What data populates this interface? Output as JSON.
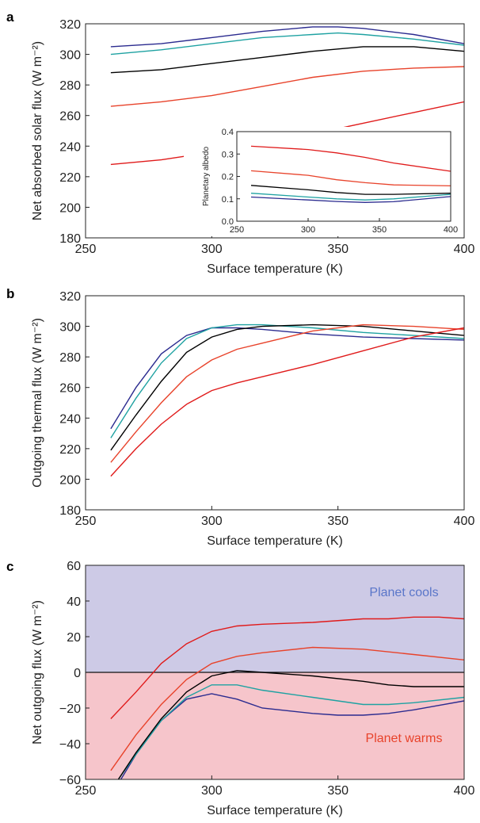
{
  "figure": {
    "panels": [
      "a",
      "b",
      "c"
    ]
  },
  "colors": {
    "series": [
      "#2b2b8f",
      "#1fa2a2",
      "#000000",
      "#e8432b",
      "#e01b1b"
    ],
    "cools_fill": "#cdcae6",
    "warms_fill": "#f6c5cb",
    "cools_text": "#5a76c9",
    "warms_text": "#e8432b"
  },
  "chart_data": [
    {
      "id": "a",
      "type": "line",
      "xlabel": "Surface temperature (K)",
      "ylabel": "Net absorbed solar flux (W m⁻²)",
      "xlim": [
        250,
        400
      ],
      "ylim": [
        180,
        320
      ],
      "xticks": [
        250,
        300,
        350,
        400
      ],
      "yticks": [
        180,
        200,
        220,
        240,
        260,
        280,
        300,
        320
      ],
      "grid": false,
      "series": [
        {
          "x": [
            260,
            280,
            300,
            320,
            340,
            350,
            360,
            380,
            400
          ],
          "values": [
            305,
            307,
            311,
            315,
            318,
            318,
            317,
            313,
            307
          ]
        },
        {
          "x": [
            260,
            280,
            300,
            320,
            340,
            350,
            360,
            380,
            400
          ],
          "values": [
            300,
            303,
            307,
            311,
            313,
            314,
            313,
            310,
            306
          ]
        },
        {
          "x": [
            260,
            280,
            300,
            320,
            340,
            360,
            380,
            400
          ],
          "values": [
            288,
            290,
            294,
            298,
            302,
            305,
            305,
            302
          ]
        },
        {
          "x": [
            260,
            280,
            300,
            320,
            340,
            360,
            380,
            400
          ],
          "values": [
            266,
            269,
            273,
            279,
            285,
            289,
            291,
            292
          ]
        },
        {
          "x": [
            260,
            280,
            300,
            320,
            340,
            360,
            380,
            400
          ],
          "values": [
            228,
            231,
            236,
            242,
            248,
            255,
            262,
            269
          ]
        }
      ],
      "inset": {
        "ylabel": "Planetary albedo",
        "xlim": [
          250,
          400
        ],
        "ylim": [
          0.0,
          0.4
        ],
        "xticks": [
          250,
          300,
          350,
          400
        ],
        "yticks": [
          0.0,
          0.1,
          0.2,
          0.3,
          0.4
        ],
        "tick_labels_y": [
          "0.0",
          "0.1",
          "0.2",
          "0.3",
          "0.4"
        ],
        "series": [
          {
            "x": [
              260,
              300,
              320,
              340,
              360,
              400
            ],
            "values": [
              0.108,
              0.095,
              0.088,
              0.084,
              0.087,
              0.11
            ]
          },
          {
            "x": [
              260,
              300,
              320,
              340,
              360,
              400
            ],
            "values": [
              0.125,
              0.108,
              0.1,
              0.095,
              0.1,
              0.12
            ]
          },
          {
            "x": [
              260,
              300,
              320,
              340,
              360,
              400
            ],
            "values": [
              0.16,
              0.14,
              0.128,
              0.12,
              0.12,
              0.125
            ]
          },
          {
            "x": [
              260,
              300,
              320,
              340,
              360,
              400
            ],
            "values": [
              0.225,
              0.205,
              0.185,
              0.172,
              0.162,
              0.158
            ]
          },
          {
            "x": [
              260,
              300,
              320,
              340,
              360,
              400
            ],
            "values": [
              0.335,
              0.32,
              0.305,
              0.285,
              0.26,
              0.223
            ]
          }
        ]
      }
    },
    {
      "id": "b",
      "type": "line",
      "xlabel": "Surface temperature (K)",
      "ylabel": "Outgoing thermal flux (W m⁻²)",
      "xlim": [
        250,
        400
      ],
      "ylim": [
        180,
        320
      ],
      "xticks": [
        250,
        300,
        350,
        400
      ],
      "yticks": [
        180,
        200,
        220,
        240,
        260,
        280,
        300,
        320
      ],
      "grid": false,
      "series": [
        {
          "x": [
            260,
            270,
            280,
            290,
            300,
            310,
            320,
            340,
            360,
            380,
            400
          ],
          "values": [
            233,
            260,
            282,
            294,
            299,
            299,
            298,
            295,
            293,
            292,
            291
          ]
        },
        {
          "x": [
            260,
            270,
            280,
            290,
            300,
            310,
            320,
            340,
            360,
            380,
            400
          ],
          "values": [
            227,
            253,
            276,
            292,
            299,
            301,
            301,
            299,
            296,
            294,
            292
          ]
        },
        {
          "x": [
            260,
            270,
            280,
            290,
            300,
            310,
            320,
            340,
            360,
            380,
            400
          ],
          "values": [
            219,
            242,
            264,
            283,
            293,
            298,
            300,
            301,
            300,
            297,
            294
          ]
        },
        {
          "x": [
            260,
            270,
            280,
            290,
            300,
            310,
            320,
            340,
            360,
            380,
            400
          ],
          "values": [
            211,
            231,
            250,
            267,
            278,
            285,
            289,
            297,
            301,
            300,
            298
          ]
        },
        {
          "x": [
            260,
            270,
            280,
            290,
            300,
            310,
            320,
            340,
            360,
            380,
            400
          ],
          "values": [
            202,
            220,
            236,
            249,
            258,
            263,
            267,
            275,
            284,
            293,
            299
          ]
        }
      ]
    },
    {
      "id": "c",
      "type": "line",
      "xlabel": "Surface temperature (K)",
      "ylabel": "Net outgoing flux (W m⁻²)",
      "xlim": [
        250,
        400
      ],
      "ylim": [
        -60,
        60
      ],
      "xticks": [
        250,
        300,
        350,
        400
      ],
      "yticks": [
        -60,
        -40,
        -20,
        0,
        20,
        40,
        60
      ],
      "tick_labels_y": [
        "−60",
        "−40",
        "−20",
        "0",
        "20",
        "40",
        "60"
      ],
      "grid": false,
      "annotations": {
        "upper": "Planet cools",
        "lower": "Planet warms"
      },
      "series": [
        {
          "x": [
            264,
            270,
            280,
            290,
            300,
            310,
            320,
            340,
            350,
            360,
            370,
            380,
            400
          ],
          "values": [
            -60,
            -46,
            -27,
            -15,
            -12,
            -15,
            -20,
            -23,
            -24,
            -24,
            -23,
            -21,
            -16
          ]
        },
        {
          "x": [
            263,
            270,
            280,
            290,
            300,
            310,
            320,
            340,
            350,
            360,
            370,
            380,
            400
          ],
          "values": [
            -60,
            -46,
            -27,
            -14,
            -7,
            -7,
            -10,
            -14,
            -16,
            -18,
            -18,
            -17,
            -14
          ]
        },
        {
          "x": [
            263,
            270,
            280,
            290,
            300,
            310,
            320,
            340,
            360,
            370,
            380,
            400
          ],
          "values": [
            -60,
            -45,
            -26,
            -11,
            -2,
            1,
            0,
            -2,
            -5,
            -7,
            -8,
            -8
          ]
        },
        {
          "x": [
            260,
            270,
            280,
            290,
            300,
            310,
            320,
            340,
            360,
            380,
            400
          ],
          "values": [
            -55,
            -35,
            -18,
            -4,
            5,
            9,
            11,
            14,
            13,
            10,
            7
          ]
        },
        {
          "x": [
            260,
            270,
            280,
            290,
            300,
            310,
            320,
            340,
            360,
            370,
            380,
            390,
            400
          ],
          "values": [
            -26,
            -11,
            5,
            16,
            23,
            26,
            27,
            28,
            30,
            30,
            31,
            31,
            30
          ]
        }
      ]
    }
  ]
}
